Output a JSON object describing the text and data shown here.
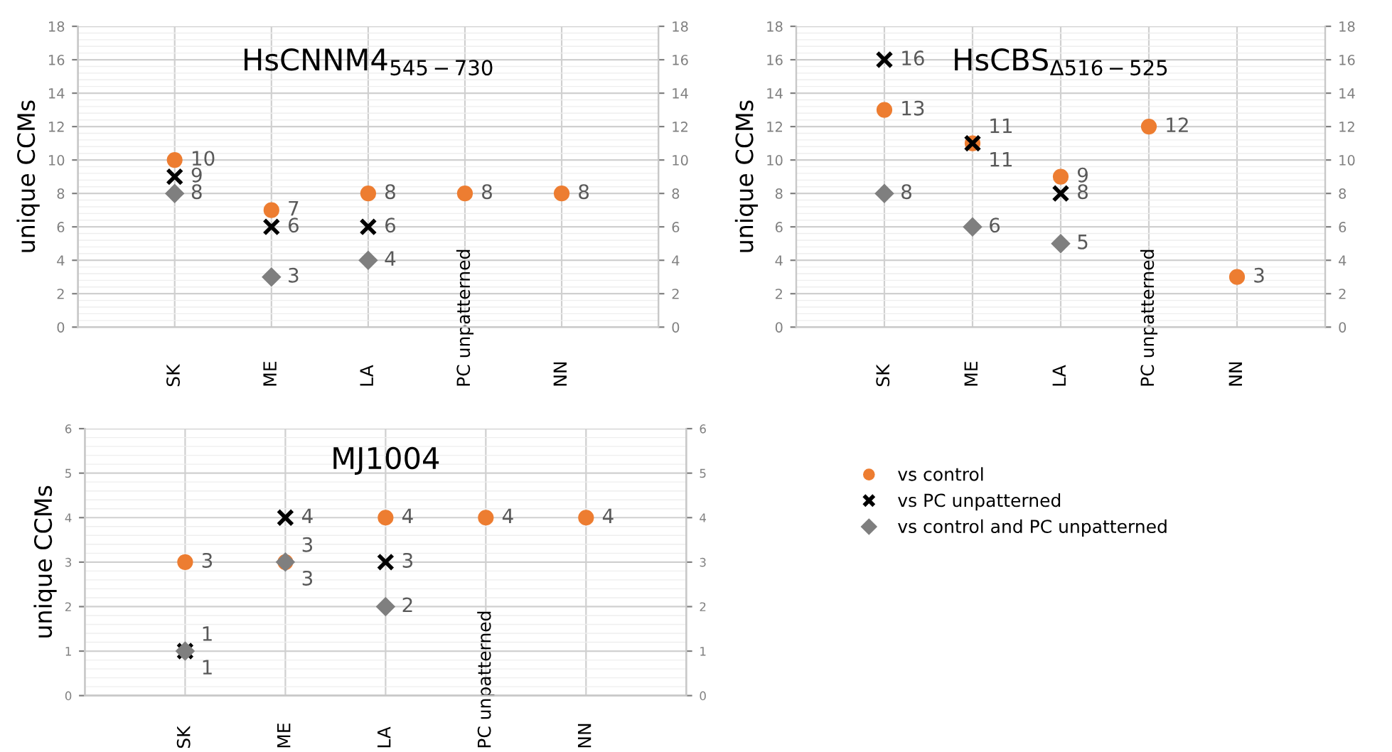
{
  "chart_data": [
    {
      "type": "scatter",
      "title": "HsCNNM4$_{545−730}$",
      "ylabel": "unique CCMs",
      "categories": [
        "SK",
        "ME",
        "LA",
        "PC unpatterned",
        "NN"
      ],
      "ylim": [
        0,
        18
      ],
      "yticks": [
        0,
        2,
        4,
        6,
        8,
        10,
        12,
        14,
        16,
        18
      ],
      "y2lim": [
        0,
        18
      ],
      "y2ticks": [
        0,
        2,
        4,
        6,
        8,
        10,
        12,
        14,
        16,
        18
      ],
      "grid": true,
      "data_labels": true,
      "series": [
        {
          "color": "#ed7d31",
          "marker": "circle",
          "values": [
            10,
            7,
            8,
            8,
            8
          ]
        },
        {
          "color": "#000000",
          "marker": "cross",
          "values": [
            9,
            6,
            6,
            null,
            null
          ]
        },
        {
          "color": "#7f7f7f",
          "marker": "diamond",
          "values": [
            8,
            3,
            4,
            null,
            null
          ]
        }
      ]
    },
    {
      "type": "scatter",
      "title": "HsCBS$_{Δ516−525}$",
      "ylabel": "unique CCMs",
      "categories": [
        "SK",
        "ME",
        "LA",
        "PC unpatterned",
        "NN"
      ],
      "ylim": [
        0,
        18
      ],
      "yticks": [
        0,
        2,
        4,
        6,
        8,
        10,
        12,
        14,
        16,
        18
      ],
      "y2lim": [
        0,
        18
      ],
      "y2ticks": [
        0,
        2,
        4,
        6,
        8,
        10,
        12,
        14,
        16,
        18
      ],
      "grid": true,
      "data_labels": true,
      "series": [
        {
          "color": "#ed7d31",
          "marker": "circle",
          "values": [
            13,
            11,
            9,
            12,
            3
          ]
        },
        {
          "color": "#000000",
          "marker": "cross",
          "values": [
            16,
            11,
            8,
            null,
            null
          ]
        },
        {
          "color": "#7f7f7f",
          "marker": "diamond",
          "values": [
            8,
            6,
            5,
            null,
            null
          ]
        }
      ]
    },
    {
      "type": "scatter",
      "title": "MJ1004",
      "ylabel": "unique CCMs",
      "categories": [
        "SK",
        "ME",
        "LA",
        "PC unpatterned",
        "NN"
      ],
      "ylim": [
        0,
        6
      ],
      "yticks": [
        0,
        1,
        2,
        3,
        4,
        5,
        6
      ],
      "y2lim": [
        0,
        6
      ],
      "y2ticks": [
        0,
        1,
        2,
        3,
        4,
        5,
        6
      ],
      "grid": true,
      "data_labels": true,
      "legend": "right",
      "series": [
        {
          "name": "vs control",
          "color": "#ed7d31",
          "marker": "circle",
          "values": [
            3,
            3,
            4,
            4,
            4
          ]
        },
        {
          "name": "vs PC unpatterned",
          "color": "#000000",
          "marker": "cross",
          "values": [
            1,
            4,
            3,
            null,
            null
          ]
        },
        {
          "name": "vs control and PC unpatterned",
          "color": "#7f7f7f",
          "marker": "diamond",
          "values": [
            1,
            3,
            2,
            null,
            null
          ]
        }
      ]
    }
  ]
}
